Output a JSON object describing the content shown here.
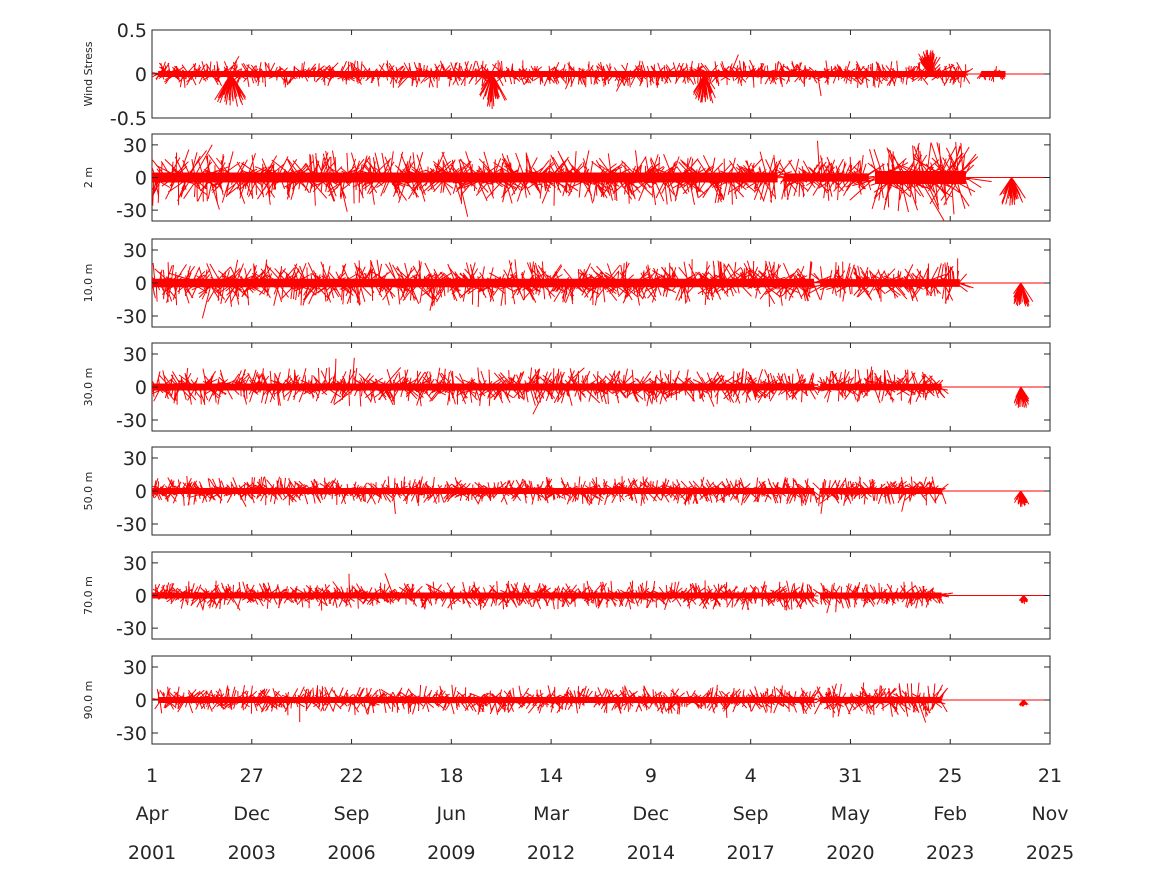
{
  "chart_data": {
    "type": "line",
    "series_color": "#ff0000",
    "x_range": [
      "2001-04-01",
      "2025-11-21"
    ],
    "x_ticks": [
      {
        "day": "1",
        "month": "Apr",
        "year": "2001",
        "date": "2001-04-01"
      },
      {
        "day": "27",
        "month": "Dec",
        "year": "2003",
        "date": "2003-12-27"
      },
      {
        "day": "22",
        "month": "Sep",
        "year": "2006",
        "date": "2006-09-22"
      },
      {
        "day": "18",
        "month": "Jun",
        "year": "2009",
        "date": "2009-06-18"
      },
      {
        "day": "14",
        "month": "Mar",
        "year": "2012",
        "date": "2012-03-14"
      },
      {
        "day": "9",
        "month": "Dec",
        "year": "2014",
        "date": "2014-12-09"
      },
      {
        "day": "4",
        "month": "Sep",
        "year": "2017",
        "date": "2017-09-04"
      },
      {
        "day": "31",
        "month": "May",
        "year": "2020",
        "date": "2020-05-31"
      },
      {
        "day": "25",
        "month": "Feb",
        "year": "2023",
        "date": "2023-02-25"
      },
      {
        "day": "21",
        "month": "Nov",
        "year": "2025",
        "date": "2025-11-21"
      }
    ],
    "panels": [
      {
        "ylabel": "Wind Stress",
        "ylim": [
          -0.5,
          0.5
        ],
        "yticks": [
          0.5,
          0,
          -0.5
        ],
        "ytick_labels": [
          "0.5",
          "0",
          "-0.5"
        ],
        "segments": [
          [
            "2001-06-01",
            "2023-08-01",
            0.16
          ],
          [
            "2024-01-01",
            "2024-09-01",
            0.1
          ]
        ],
        "quiet": [
          [
            "2023-08-01",
            "2025-11-01"
          ]
        ],
        "bursts": [
          [
            "2003-06-01",
            -0.4
          ],
          [
            "2010-08-01",
            -0.4
          ],
          [
            "2016-06-01",
            -0.35
          ],
          [
            "2022-08-01",
            0.3
          ]
        ]
      },
      {
        "ylabel": "2 m",
        "ylim": [
          -40,
          40
        ],
        "yticks": [
          30,
          0,
          -30
        ],
        "ytick_labels": [
          "30",
          "0",
          "-30"
        ],
        "segments": [
          [
            "2001-04-01",
            "2018-06-01",
            26
          ],
          [
            "2018-08-01",
            "2020-12-01",
            22
          ],
          [
            "2021-02-01",
            "2023-08-01",
            34
          ]
        ],
        "quiet": [
          [
            "2023-08-01",
            "2025-11-01"
          ]
        ],
        "bursts": [
          [
            "2024-11-01",
            -28
          ]
        ]
      },
      {
        "ylabel": "10.0 m",
        "ylim": [
          -40,
          40
        ],
        "yticks": [
          30,
          0,
          -30
        ],
        "ytick_labels": [
          "30",
          "0",
          "-30"
        ],
        "segments": [
          [
            "2001-04-01",
            "2019-06-01",
            22
          ],
          [
            "2019-08-01",
            "2023-06-01",
            20
          ]
        ],
        "quiet": [
          [
            "2023-06-01",
            "2025-11-01"
          ]
        ],
        "bursts": [
          [
            "2025-02-01",
            -24
          ]
        ]
      },
      {
        "ylabel": "30.0 m",
        "ylim": [
          -40,
          40
        ],
        "yticks": [
          30,
          0,
          -30
        ],
        "ytick_labels": [
          "30",
          "0",
          "-30"
        ],
        "segments": [
          [
            "2001-04-01",
            "2019-06-01",
            18
          ],
          [
            "2019-08-01",
            "2022-12-01",
            17
          ]
        ],
        "quiet": [
          [
            "2022-12-01",
            "2025-11-01"
          ]
        ],
        "bursts": [
          [
            "2025-02-01",
            -20
          ]
        ]
      },
      {
        "ylabel": "50.0 m",
        "ylim": [
          -40,
          40
        ],
        "yticks": [
          30,
          0,
          -30
        ],
        "ytick_labels": [
          "30",
          "0",
          "-30"
        ],
        "segments": [
          [
            "2001-04-01",
            "2019-06-01",
            14
          ],
          [
            "2019-08-01",
            "2022-12-01",
            14
          ]
        ],
        "quiet": [
          [
            "2022-12-01",
            "2025-11-01"
          ]
        ],
        "bursts": [
          [
            "2025-02-01",
            -15
          ]
        ]
      },
      {
        "ylabel": "70.0 m",
        "ylim": [
          -40,
          40
        ],
        "yticks": [
          30,
          0,
          -30
        ],
        "ytick_labels": [
          "30",
          "0",
          "-30"
        ],
        "segments": [
          [
            "2001-04-01",
            "2019-06-01",
            14
          ],
          [
            "2019-08-01",
            "2022-12-01",
            13
          ]
        ],
        "quiet": [
          [
            "2022-12-01",
            "2025-11-01"
          ]
        ],
        "bursts": [
          [
            "2025-03-01",
            -8
          ]
        ]
      },
      {
        "ylabel": "90.0 m",
        "ylim": [
          -40,
          40
        ],
        "yticks": [
          30,
          0,
          -30
        ],
        "ytick_labels": [
          "30",
          "0",
          "-30"
        ],
        "segments": [
          [
            "2001-06-01",
            "2019-06-01",
            14
          ],
          [
            "2019-08-01",
            "2022-12-01",
            16
          ]
        ],
        "quiet": [
          [
            "2022-12-01",
            "2025-11-01"
          ]
        ],
        "bursts": [
          [
            "2025-03-01",
            -6
          ]
        ]
      }
    ]
  }
}
